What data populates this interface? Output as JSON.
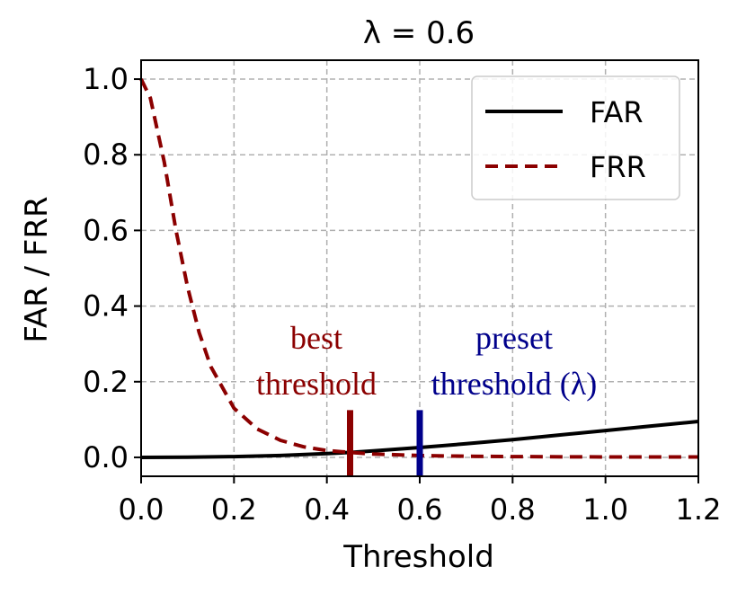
{
  "chart_data": {
    "type": "line",
    "title": "λ = 0.6",
    "xlabel": "Threshold",
    "ylabel": "FAR / FRR",
    "xlim": [
      0.0,
      1.2
    ],
    "ylim": [
      -0.05,
      1.05
    ],
    "xticks": [
      0.0,
      0.2,
      0.4,
      0.6,
      0.8,
      1.0,
      1.2
    ],
    "yticks": [
      0.0,
      0.2,
      0.4,
      0.6,
      0.8,
      1.0
    ],
    "xtick_labels": [
      "0.0",
      "0.2",
      "0.4",
      "0.6",
      "0.8",
      "1.0",
      "1.2"
    ],
    "ytick_labels": [
      "0.0",
      "0.2",
      "0.4",
      "0.6",
      "0.8",
      "1.0"
    ],
    "grid": true,
    "legend_position": "top-right",
    "series": [
      {
        "name": "FAR",
        "style": "solid",
        "color": "#000000",
        "x": [
          0.0,
          0.1,
          0.2,
          0.3,
          0.4,
          0.45,
          0.5,
          0.6,
          0.7,
          0.8,
          0.9,
          1.0,
          1.1,
          1.2
        ],
        "y": [
          0.0,
          0.0005,
          0.002,
          0.005,
          0.01,
          0.013,
          0.017,
          0.026,
          0.036,
          0.047,
          0.059,
          0.071,
          0.083,
          0.095
        ]
      },
      {
        "name": "FRR",
        "style": "dashed",
        "color": "#8b0000",
        "x": [
          0.0,
          0.02,
          0.05,
          0.075,
          0.1,
          0.125,
          0.15,
          0.2,
          0.25,
          0.3,
          0.35,
          0.4,
          0.45,
          0.5,
          0.6,
          0.7,
          0.8,
          1.0,
          1.2
        ],
        "y": [
          1.0,
          0.95,
          0.78,
          0.6,
          0.45,
          0.33,
          0.24,
          0.13,
          0.075,
          0.045,
          0.028,
          0.018,
          0.013,
          0.009,
          0.005,
          0.003,
          0.002,
          0.001,
          0.001
        ]
      }
    ],
    "markers": [
      {
        "x": 0.45,
        "y_range": [
          -0.05,
          0.125
        ],
        "color": "#8b0000",
        "label_lines": [
          "best",
          "threshold"
        ]
      },
      {
        "x": 0.6,
        "y_range": [
          -0.05,
          0.125
        ],
        "color": "#00008b",
        "label_lines": [
          "preset",
          "threshold (λ)"
        ]
      }
    ]
  }
}
